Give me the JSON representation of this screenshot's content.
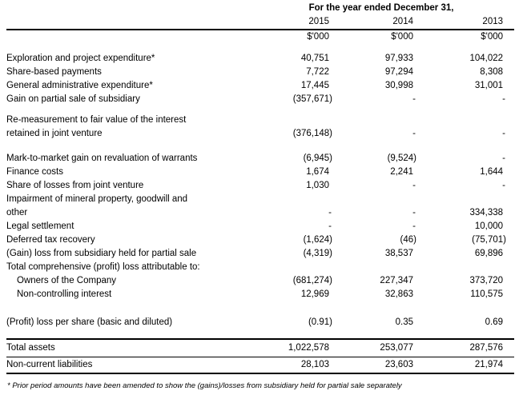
{
  "table": {
    "header": {
      "title": "For the year ended December 31,",
      "years": [
        "2015",
        "2014",
        "2013"
      ],
      "units": [
        "$'000",
        "$'000",
        "$'000"
      ]
    },
    "rows": [
      {
        "type": "spacer",
        "height": 10
      },
      {
        "type": "data",
        "label": "Exploration and project expenditure*",
        "values": [
          "40,751",
          "97,933",
          "104,022"
        ]
      },
      {
        "type": "data",
        "label": "Share-based payments",
        "values": [
          "7,722",
          "97,294",
          "8,308"
        ]
      },
      {
        "type": "data",
        "label": "General administrative expenditure*",
        "values": [
          "17,445",
          "30,998",
          "31,001"
        ]
      },
      {
        "type": "data",
        "label": "Gain on partial sale of subsidiary",
        "values": [
          "(357,671)",
          "-",
          "-"
        ]
      },
      {
        "type": "spacer",
        "height": 9
      },
      {
        "type": "data",
        "label": "Re-measurement to fair value of the interest",
        "values": [
          "",
          "",
          ""
        ]
      },
      {
        "type": "data",
        "label": "retained in joint venture",
        "values": [
          "(376,148)",
          "-",
          "-"
        ]
      },
      {
        "type": "spacer",
        "height": 14
      },
      {
        "type": "data",
        "label": "Mark-to-market gain on revaluation of warrants",
        "values": [
          "(6,945)",
          "(9,524)",
          "-"
        ]
      },
      {
        "type": "data",
        "label": "Finance costs",
        "values": [
          "1,674",
          "2,241",
          "1,644"
        ]
      },
      {
        "type": "data",
        "label": "Share of losses from joint venture",
        "values": [
          "1,030",
          "-",
          "-"
        ]
      },
      {
        "type": "data",
        "label": "Impairment of mineral property, goodwill and",
        "values": [
          "",
          "",
          ""
        ]
      },
      {
        "type": "data",
        "label": "other",
        "values": [
          "-",
          "-",
          "334,338"
        ]
      },
      {
        "type": "data",
        "label": "Legal settlement",
        "values": [
          "-",
          "-",
          "10,000"
        ]
      },
      {
        "type": "data",
        "label": "Deferred tax recovery",
        "values": [
          "(1,624)",
          "(46)",
          "(75,701)"
        ]
      },
      {
        "type": "data",
        "label": "(Gain) loss from subsidiary held for partial sale",
        "values": [
          "(4,319)",
          "38,537",
          "69,896"
        ]
      },
      {
        "type": "data",
        "label": "Total comprehensive (profit) loss attributable to:",
        "values": [
          "",
          "",
          ""
        ]
      },
      {
        "type": "data",
        "indent": true,
        "label": "Owners of the Company",
        "values": [
          "(681,274)",
          "227,347",
          "373,720"
        ]
      },
      {
        "type": "data",
        "indent": true,
        "label": "Non-controlling interest",
        "values": [
          "12,969",
          "32,863",
          "110,575"
        ]
      },
      {
        "type": "spacer",
        "height": 18
      },
      {
        "type": "data",
        "label": "(Profit) loss per share (basic and diluted)",
        "values": [
          "(0.91)",
          "0.35",
          "0.69"
        ]
      },
      {
        "type": "spacer",
        "height": 12
      }
    ],
    "summary_rows": [
      {
        "label": "Total assets",
        "values": [
          "1,022,578",
          "253,077",
          "287,576"
        ]
      },
      {
        "label": "Non-current liabilities",
        "values": [
          "28,103",
          "23,603",
          "21,974"
        ]
      }
    ],
    "footnote": "* Prior period amounts have been amended to show the (gains)/losses from subsidiary held for partial sale separately"
  }
}
